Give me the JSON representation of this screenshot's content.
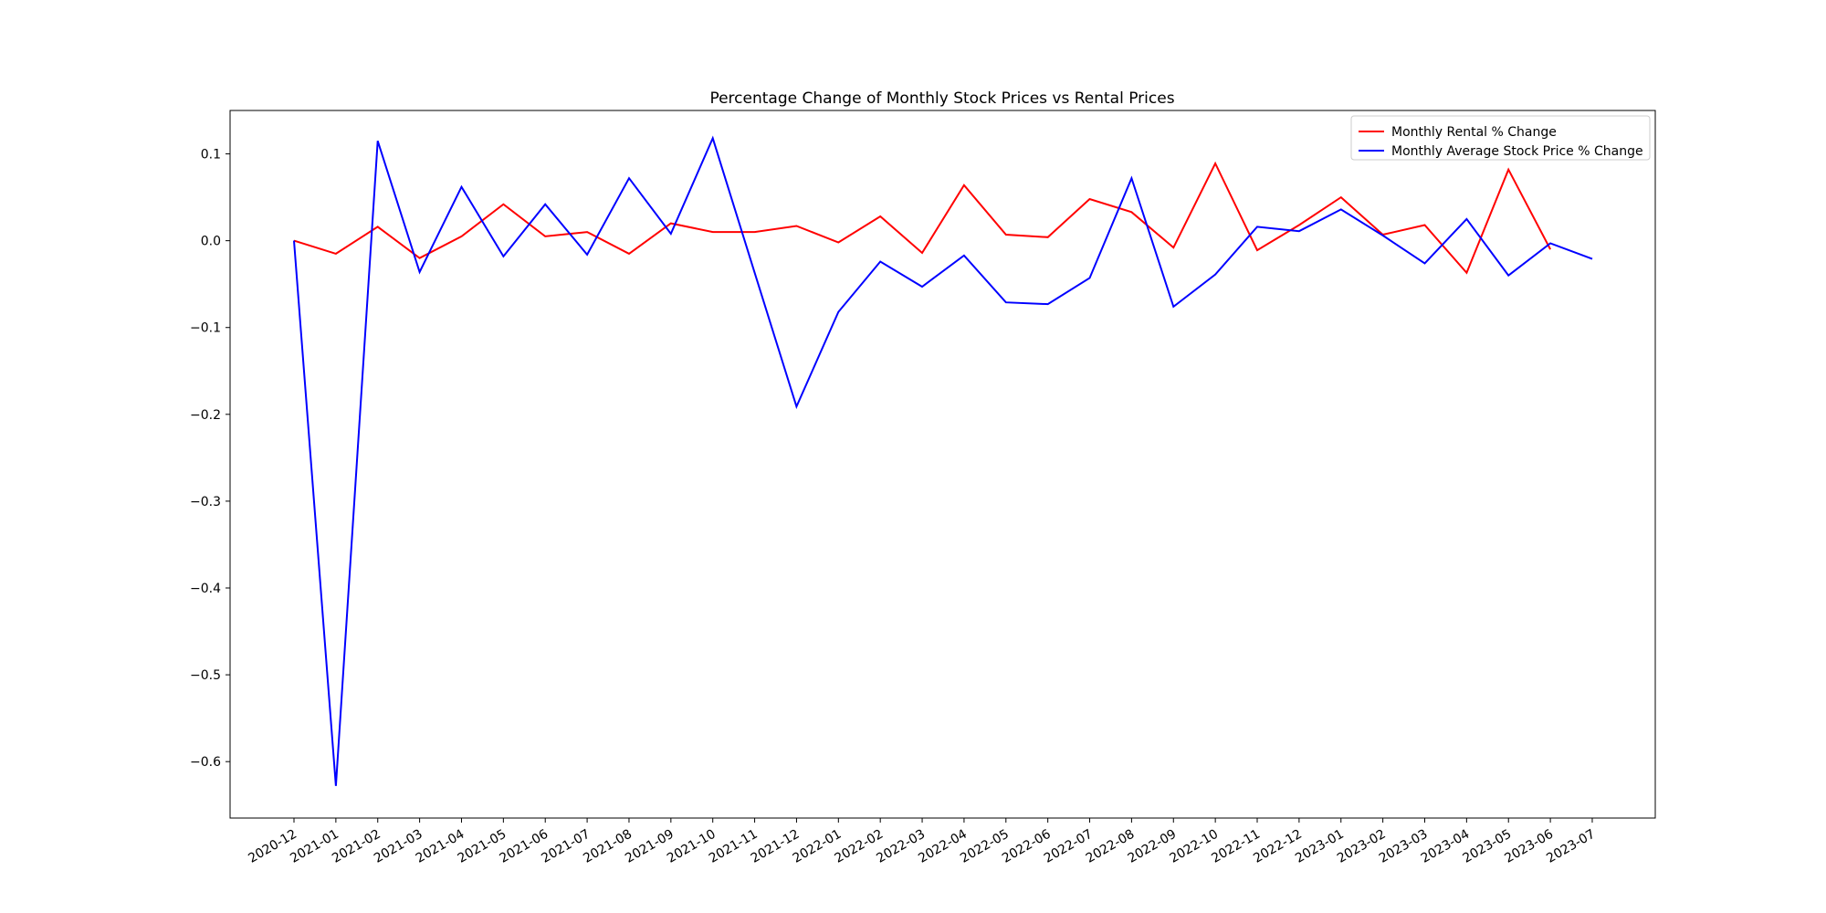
{
  "chart_data": {
    "type": "line",
    "title": "Percentage Change of Monthly Stock Prices vs Rental Prices",
    "xlabel": "",
    "ylabel": "",
    "x": [
      "2020-12",
      "2021-01",
      "2021-02",
      "2021-03",
      "2021-04",
      "2021-05",
      "2021-06",
      "2021-07",
      "2021-08",
      "2021-09",
      "2021-10",
      "2021-11",
      "2021-12",
      "2022-01",
      "2022-02",
      "2022-03",
      "2022-04",
      "2022-05",
      "2022-06",
      "2022-07",
      "2022-08",
      "2022-09",
      "2022-10",
      "2022-11",
      "2022-12",
      "2023-01",
      "2023-02",
      "2023-03",
      "2023-04",
      "2023-05",
      "2023-06",
      "2023-07"
    ],
    "ylim": [
      -0.665,
      0.15
    ],
    "yticks": [
      0.1,
      0.0,
      -0.1,
      -0.2,
      -0.3,
      -0.4,
      -0.5,
      -0.6
    ],
    "ytick_labels": [
      "0.1",
      "0.0",
      "−0.1",
      "−0.2",
      "−0.3",
      "−0.4",
      "−0.5",
      "−0.6"
    ],
    "grid": false,
    "legend_position": "top-right",
    "series": [
      {
        "name": "Monthly Rental % Change",
        "color": "#ff0000",
        "values": [
          0.0,
          -0.015,
          0.016,
          -0.02,
          0.005,
          0.042,
          0.005,
          0.01,
          -0.015,
          0.02,
          0.01,
          0.01,
          0.017,
          -0.002,
          0.028,
          -0.014,
          0.064,
          0.007,
          0.004,
          0.048,
          0.033,
          -0.008,
          0.089,
          -0.011,
          0.018,
          0.05,
          0.007,
          0.018,
          -0.037,
          0.082,
          -0.01,
          null
        ]
      },
      {
        "name": "Monthly Average Stock Price % Change",
        "color": "#0000ff",
        "values": [
          0.0,
          -0.628,
          0.115,
          -0.036,
          0.062,
          -0.018,
          0.042,
          -0.016,
          0.072,
          0.008,
          0.118,
          -0.037,
          -0.191,
          -0.082,
          -0.024,
          -0.053,
          -0.017,
          -0.071,
          -0.073,
          -0.043,
          0.072,
          -0.076,
          -0.039,
          0.016,
          0.011,
          0.036,
          0.006,
          -0.026,
          0.025,
          -0.04,
          -0.003,
          -0.021
        ]
      }
    ]
  }
}
